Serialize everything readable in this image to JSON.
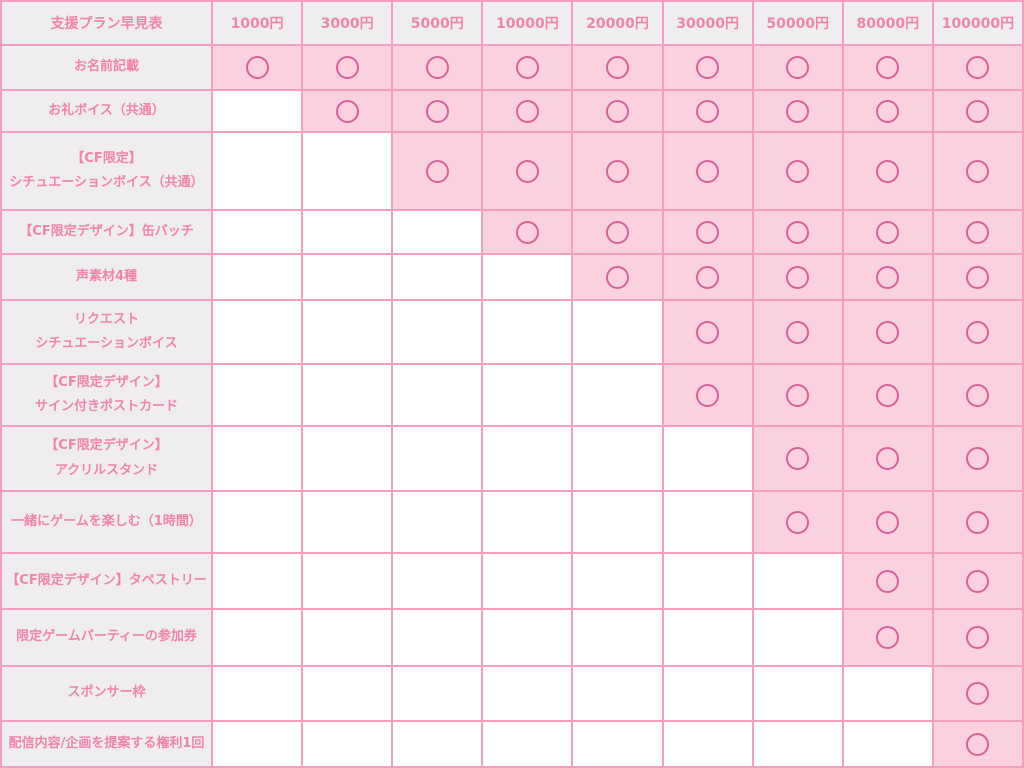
{
  "chart_data": {
    "type": "table",
    "title": "支援プラン早見表",
    "columns": [
      "1000円",
      "3000円",
      "5000円",
      "10000円",
      "20000円",
      "30000円",
      "50000円",
      "80000円",
      "100000円"
    ],
    "mark_symbol": "○",
    "mark_meaning": "reward included in tier",
    "rows": [
      {
        "label_lines": [
          "お名前記載"
        ],
        "marks": [
          true,
          true,
          true,
          true,
          true,
          true,
          true,
          true,
          true
        ]
      },
      {
        "label_lines": [
          "お礼ボイス（共通）"
        ],
        "marks": [
          false,
          true,
          true,
          true,
          true,
          true,
          true,
          true,
          true
        ]
      },
      {
        "label_lines": [
          "【CF限定】",
          "シチュエーションボイス（共通）"
        ],
        "marks": [
          false,
          false,
          true,
          true,
          true,
          true,
          true,
          true,
          true
        ]
      },
      {
        "label_lines": [
          "【CF限定デザイン】缶バッチ"
        ],
        "marks": [
          false,
          false,
          false,
          true,
          true,
          true,
          true,
          true,
          true
        ]
      },
      {
        "label_lines": [
          "声素材4種"
        ],
        "marks": [
          false,
          false,
          false,
          false,
          true,
          true,
          true,
          true,
          true
        ]
      },
      {
        "label_lines": [
          "リクエスト",
          "シチュエーションボイス"
        ],
        "marks": [
          false,
          false,
          false,
          false,
          false,
          true,
          true,
          true,
          true
        ]
      },
      {
        "label_lines": [
          "【CF限定デザイン】",
          "サイン付きポストカード"
        ],
        "marks": [
          false,
          false,
          false,
          false,
          false,
          true,
          true,
          true,
          true
        ]
      },
      {
        "label_lines": [
          "【CF限定デザイン】",
          "アクリルスタンド"
        ],
        "marks": [
          false,
          false,
          false,
          false,
          false,
          false,
          true,
          true,
          true
        ]
      },
      {
        "label_lines": [
          "一緒にゲームを楽しむ（1時間）"
        ],
        "marks": [
          false,
          false,
          false,
          false,
          false,
          false,
          true,
          true,
          true
        ]
      },
      {
        "label_lines": [
          "【CF限定デザイン】タペストリー"
        ],
        "marks": [
          false,
          false,
          false,
          false,
          false,
          false,
          false,
          true,
          true
        ]
      },
      {
        "label_lines": [
          "限定ゲームパーティーの参加券"
        ],
        "marks": [
          false,
          false,
          false,
          false,
          false,
          false,
          false,
          true,
          true
        ]
      },
      {
        "label_lines": [
          "スポンサー枠"
        ],
        "marks": [
          false,
          false,
          false,
          false,
          false,
          false,
          false,
          false,
          true
        ]
      },
      {
        "label_lines": [
          "配信内容/企画を提案する権利1回"
        ],
        "marks": [
          false,
          false,
          false,
          false,
          false,
          false,
          false,
          false,
          true
        ]
      }
    ],
    "layout_hints": {
      "header_row": "top",
      "label_column": "left",
      "grid": "on"
    }
  },
  "colors": {
    "grid_line": "#f49fc0",
    "header_bg": "#f0edf0",
    "active_cell_bg": "#fbd1e0",
    "empty_cell_bg": "#ffffff",
    "text_pink": "#f184ab",
    "mark_stroke": "#d9619a"
  }
}
